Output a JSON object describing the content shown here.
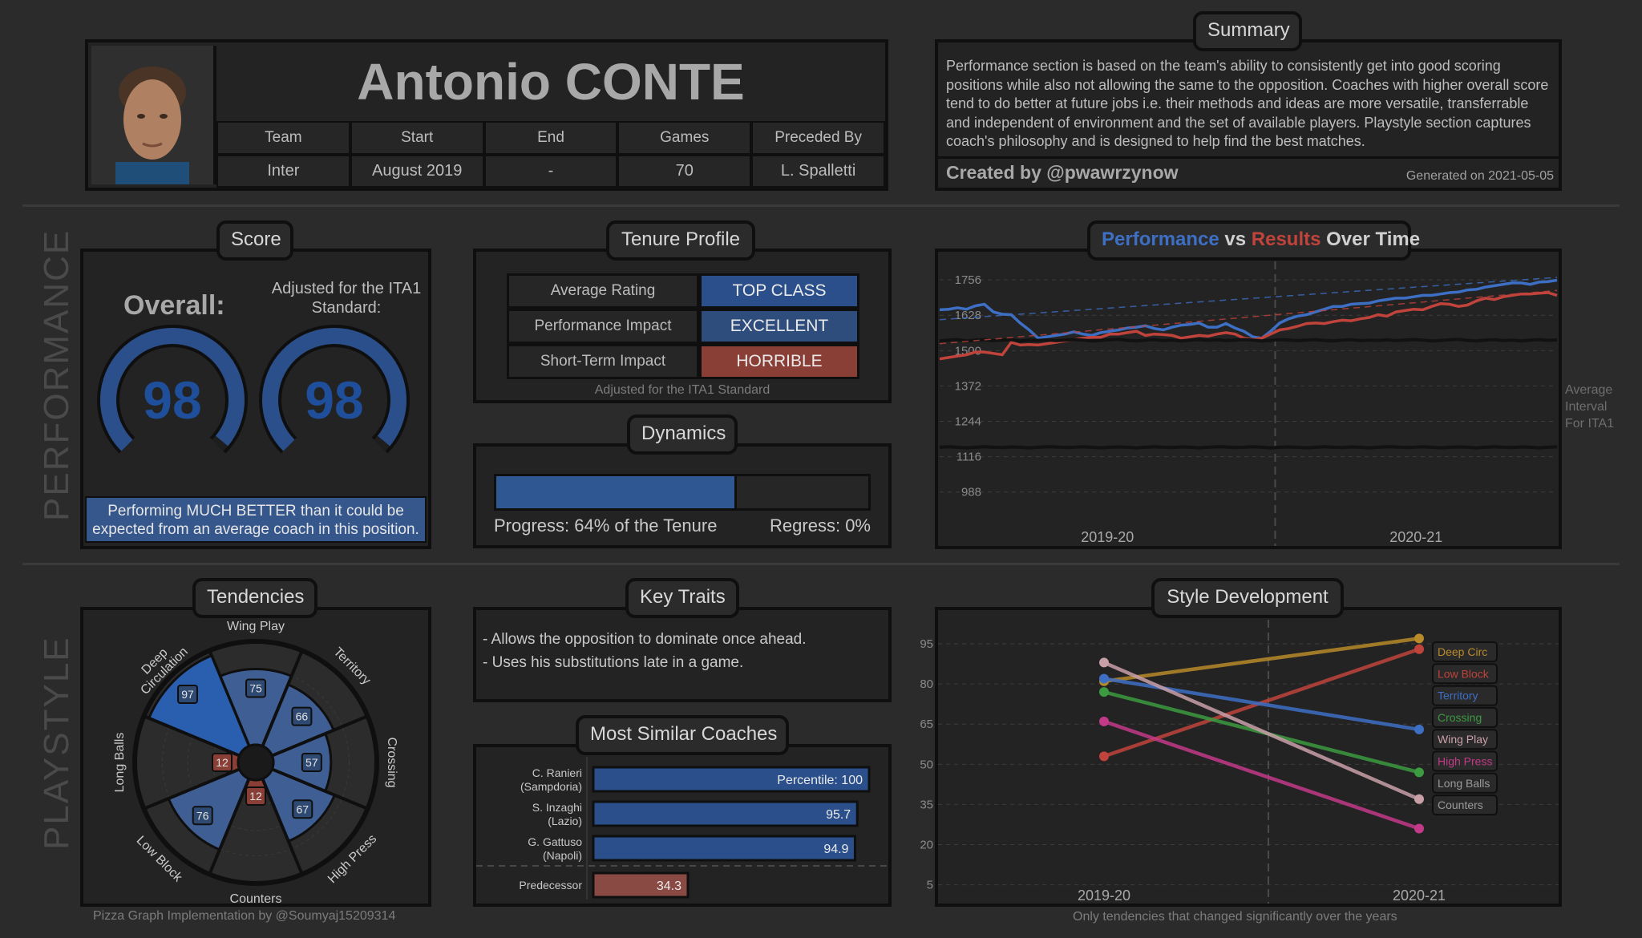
{
  "header": {
    "name": "Antonio CONTE",
    "columns": [
      "Team",
      "Start",
      "End",
      "Games",
      "Preceded By"
    ],
    "values": [
      "Inter",
      "August 2019",
      "-",
      "70",
      "L. Spalletti"
    ]
  },
  "summary": {
    "title": "Summary",
    "text": "Performance section is based on the team's ability to consistently get into good scoring positions while also not allowing the same to the opposition. Coaches with higher overall score tend to do better at future jobs i.e. their methods and ideas are more versatile, transferrable and independent of environment and the set of available players. Playstyle section captures coach's philosophy and is designed to help find the best matches.",
    "created_by": "Created by @pwawrzynow",
    "generated": "Generated on 2021-05-05"
  },
  "sections": {
    "performance": "PERFORMANCE",
    "playstyle": "PLAYSTYLE"
  },
  "score": {
    "title": "Score",
    "overall_label": "Overall:",
    "adjusted_label": "Adjusted for the ITA1 Standard:",
    "overall_value": "98",
    "adjusted_value": "98",
    "overall_fraction": 0.98,
    "adjusted_fraction": 0.98,
    "verdict": "Performing MUCH BETTER than it could be expected from an average coach in this position."
  },
  "tenure": {
    "title": "Tenure Profile",
    "rows": [
      {
        "label": "Average Rating",
        "value": "TOP CLASS",
        "color": "#2a4f8a"
      },
      {
        "label": "Performance Impact",
        "value": "EXCELLENT",
        "color": "#2e4d7c"
      },
      {
        "label": "Short-Term Impact",
        "value": "HORRIBLE",
        "color": "#8a3f36"
      }
    ],
    "note": "Adjusted for the ITA1 Standard"
  },
  "dynamics": {
    "title": "Dynamics",
    "progress_label": "Progress: 64% of the Tenure",
    "regress_label": "Regress: 0%",
    "progress_fraction": 0.64,
    "regress_fraction": 0.0
  },
  "perf_chart": {
    "title_parts": [
      {
        "text": "Performance",
        "color": "#3d6fc4"
      },
      {
        "text": " vs ",
        "color": "#d0d0d0"
      },
      {
        "text": "Results",
        "color": "#c0433c"
      },
      {
        "text": " Over Time",
        "color": "#d0d0d0"
      }
    ],
    "side_label": [
      "Average",
      "Interval",
      "For ITA1"
    ]
  },
  "tendencies": {
    "title": "Tendencies",
    "credit": "Pizza Graph Implementation by @Soumyaj15209314"
  },
  "traits": {
    "title": "Key Traits",
    "items": [
      "- Allows the opposition to dominate once ahead.",
      "- Uses his substitutions late in a game."
    ]
  },
  "similar": {
    "title": "Most Similar Coaches"
  },
  "style": {
    "title": "Style Development",
    "note": "Only tendencies that changed significantly over the years"
  },
  "chart_data": [
    {
      "type": "line",
      "title": "Performance vs Results Over Time",
      "categories": [
        "2019-20",
        "2020-21"
      ],
      "y_ticks": [
        988,
        1116,
        1244,
        1372,
        1500,
        1628,
        1756
      ],
      "ylim": [
        900,
        1800
      ],
      "grid": true,
      "x": [
        0,
        1,
        2,
        3,
        4,
        5,
        6,
        7,
        8,
        9,
        10,
        11,
        12,
        13,
        14,
        15,
        16,
        17,
        18,
        19,
        20,
        21,
        22,
        23,
        24,
        25,
        26,
        27,
        28,
        29,
        30,
        31,
        32,
        33,
        34,
        35,
        36,
        37,
        38,
        39,
        40,
        41,
        42,
        43,
        44,
        45,
        46,
        47,
        48,
        49,
        50,
        51,
        52,
        53,
        54,
        55,
        56,
        57,
        58,
        59,
        60,
        61,
        62,
        63,
        64,
        65,
        66,
        67,
        68,
        69
      ],
      "season_split": 37.5,
      "series": [
        {
          "name": "Performance",
          "color": "#3d6fc4",
          "values": [
            1648,
            1650,
            1655,
            1650,
            1662,
            1668,
            1640,
            1632,
            1630,
            1600,
            1575,
            1545,
            1550,
            1555,
            1560,
            1568,
            1560,
            1555,
            1565,
            1570,
            1575,
            1582,
            1585,
            1590,
            1580,
            1575,
            1585,
            1592,
            1595,
            1600,
            1585,
            1585,
            1598,
            1582,
            1570,
            1550,
            1545,
            1570,
            1600,
            1615,
            1625,
            1630,
            1640,
            1650,
            1660,
            1660,
            1668,
            1670,
            1672,
            1680,
            1685,
            1690,
            1690,
            1695,
            1700,
            1700,
            1705,
            1710,
            1712,
            1720,
            1722,
            1730,
            1735,
            1740,
            1745,
            1745,
            1740,
            1748,
            1750,
            1755
          ]
        },
        {
          "name": "Results",
          "color": "#c0433c",
          "values": [
            1470,
            1475,
            1480,
            1485,
            1495,
            1495,
            1490,
            1485,
            1530,
            1520,
            1522,
            1520,
            1525,
            1530,
            1535,
            1540,
            1545,
            1548,
            1548,
            1560,
            1560,
            1565,
            1570,
            1555,
            1560,
            1558,
            1555,
            1545,
            1550,
            1555,
            1552,
            1560,
            1565,
            1560,
            1545,
            1540,
            1545,
            1560,
            1575,
            1580,
            1588,
            1598,
            1600,
            1598,
            1605,
            1610,
            1608,
            1615,
            1620,
            1630,
            1625,
            1640,
            1645,
            1650,
            1648,
            1660,
            1670,
            1668,
            1660,
            1665,
            1680,
            1690,
            1685,
            1695,
            1700,
            1705,
            1705,
            1708,
            1710,
            1700
          ]
        },
        {
          "name": "Average Interval Upper",
          "color": "#121212",
          "values": [
            1535,
            1538,
            1540,
            1535,
            1538,
            1540,
            1536,
            1538,
            1540,
            1535,
            1538,
            1537,
            1539,
            1536,
            1538,
            1540,
            1538,
            1535,
            1537,
            1539,
            1541,
            1537,
            1535,
            1538,
            1540,
            1536,
            1538,
            1535,
            1538,
            1540,
            1537,
            1539,
            1536,
            1538,
            1540,
            1538,
            1535,
            1537,
            1540,
            1538,
            1536,
            1538,
            1540,
            1537,
            1535,
            1538,
            1540,
            1536,
            1538,
            1537,
            1539,
            1536,
            1538,
            1540,
            1538,
            1535,
            1537,
            1539,
            1541,
            1537,
            1535,
            1538,
            1540,
            1536,
            1538,
            1535,
            1538,
            1540,
            1537,
            1539
          ]
        },
        {
          "name": "Average Interval Lower",
          "color": "#121212",
          "values": [
            1150,
            1152,
            1150,
            1148,
            1150,
            1152,
            1150,
            1149,
            1151,
            1150,
            1148,
            1150,
            1152,
            1151,
            1149,
            1150,
            1152,
            1150,
            1148,
            1150,
            1151,
            1150,
            1148,
            1150,
            1152,
            1150,
            1149,
            1151,
            1150,
            1148,
            1150,
            1152,
            1151,
            1149,
            1150,
            1152,
            1150,
            1148,
            1150,
            1151,
            1150,
            1148,
            1150,
            1152,
            1150,
            1149,
            1151,
            1150,
            1148,
            1150,
            1152,
            1151,
            1149,
            1150,
            1152,
            1150,
            1148,
            1150,
            1151,
            1150,
            1148,
            1150,
            1152,
            1150,
            1149,
            1151,
            1150,
            1148,
            1150,
            1152
          ]
        }
      ],
      "trend_lines": [
        {
          "series": "Performance",
          "start": 1612,
          "end": 1765
        },
        {
          "series": "Results",
          "start": 1525,
          "end": 1718
        }
      ]
    },
    {
      "type": "pie",
      "title": "Tendencies",
      "categories": [
        "Wing Play",
        "Territory",
        "Crossing",
        "High Press",
        "Counters",
        "Low Block",
        "Long Balls",
        "Deep Circulation"
      ],
      "values": [
        75,
        66,
        57,
        67,
        12,
        76,
        12,
        97
      ],
      "highlight_colors": [
        "#3f5f94",
        "#3f5f94",
        "#3f5f94",
        "#3f5f94",
        "#8a3f36",
        "#3f5f94",
        "#8a3f36",
        "#2a5fb0"
      ],
      "radial_max": 100
    },
    {
      "type": "bar",
      "title": "Most Similar Coaches",
      "categories": [
        "C. Ranieri (Sampdoria)",
        "S. Inzaghi (Lazio)",
        "G. Gattuso (Napoli)",
        "Predecessor"
      ],
      "values": [
        100,
        95.7,
        94.9,
        34.3
      ],
      "labels": [
        "Percentile: 100",
        "95.7",
        "94.9",
        "34.3"
      ],
      "colors": [
        "#2a4f8a",
        "#2a4f8a",
        "#2a4f8a",
        "#8a4a44"
      ],
      "xlim": [
        0,
        100
      ]
    },
    {
      "type": "line",
      "title": "Style Development",
      "categories": [
        "2019-20",
        "2020-21"
      ],
      "y_ticks": [
        5,
        20,
        35,
        50,
        65,
        80,
        95
      ],
      "ylim": [
        -2,
        104
      ],
      "grid": true,
      "series": [
        {
          "name": "Deep Circ",
          "color": "#b88a2a",
          "values": [
            81,
            97
          ]
        },
        {
          "name": "Low Block",
          "color": "#c0433c",
          "values": [
            53,
            93
          ]
        },
        {
          "name": "Territory",
          "color": "#3d6fc4",
          "values": [
            82,
            63
          ]
        },
        {
          "name": "Crossing",
          "color": "#3c9a40",
          "values": [
            77,
            47
          ]
        },
        {
          "name": "Wing Play",
          "color": "#c9a0a8",
          "values": [
            88,
            37
          ]
        },
        {
          "name": "High Press",
          "color": "#c23a88",
          "values": [
            66,
            26
          ]
        },
        {
          "name": "Long Balls",
          "color": "#9a9a9a",
          "values": [
            null,
            null
          ]
        },
        {
          "name": "Counters",
          "color": "#9a9a9a",
          "values": [
            null,
            null
          ]
        }
      ]
    }
  ]
}
